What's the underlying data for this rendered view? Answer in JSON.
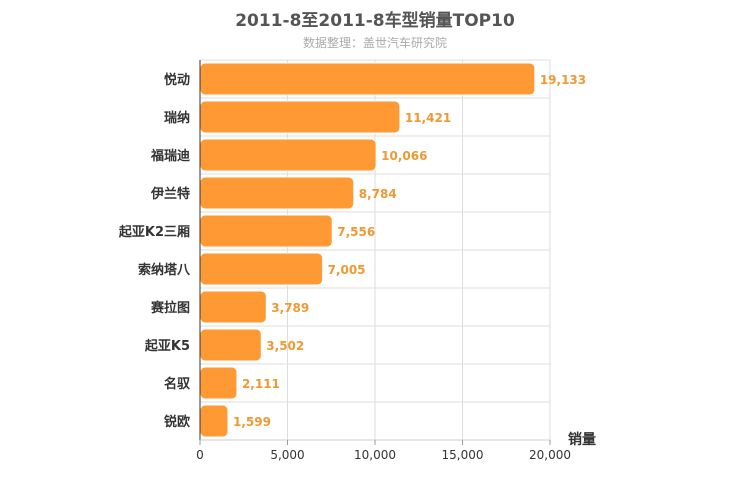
{
  "chart_data": {
    "type": "bar",
    "orientation": "horizontal",
    "title": "2011-8至2011-8车型销量TOP10",
    "subtitle": "数据整理：盖世汽车研究院",
    "xlabel": "销量",
    "ylabel": "",
    "categories": [
      "悦动",
      "瑞纳",
      "福瑞迪",
      "伊兰特",
      "起亚K2三厢",
      "索纳塔八",
      "赛拉图",
      "起亚K5",
      "名驭",
      "锐欧"
    ],
    "values": [
      19133,
      11421,
      10066,
      8784,
      7556,
      7005,
      3789,
      3502,
      2111,
      1599
    ],
    "value_labels": [
      "19,133",
      "11,421",
      "10,066",
      "8,784",
      "7,556",
      "7,005",
      "3,789",
      "3,502",
      "2,111",
      "1,599"
    ],
    "xlim": [
      0,
      20000
    ],
    "xticks": [
      0,
      5000,
      10000,
      15000,
      20000
    ],
    "xtick_labels": [
      "0",
      "5,000",
      "10,000",
      "15,000",
      "20,000"
    ],
    "grid": true,
    "legend": "none",
    "colors": {
      "bar": "#ff9933",
      "bar_stroke": "#ffffff",
      "value_label": "#ee9933",
      "grid": "#dddddd",
      "axis": "#333333"
    }
  }
}
